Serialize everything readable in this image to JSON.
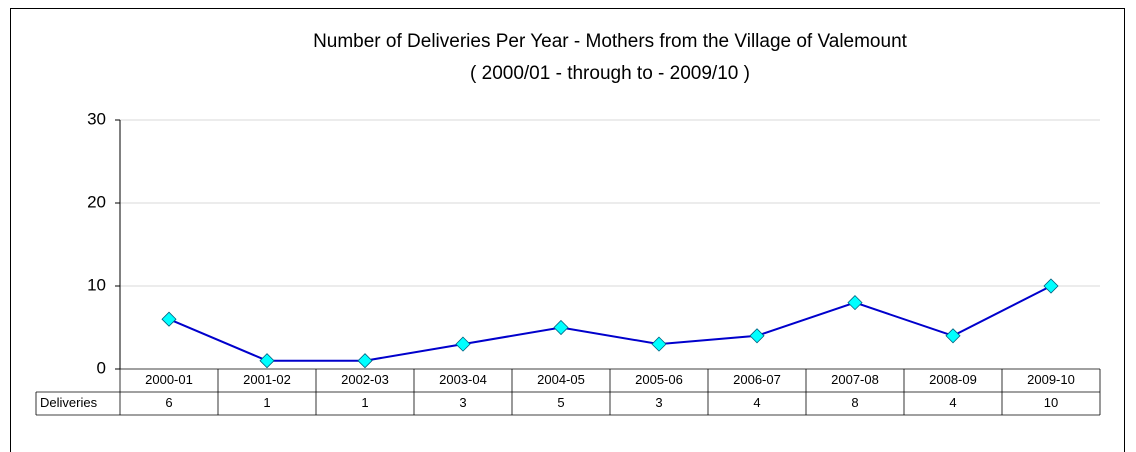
{
  "chart_data": {
    "type": "line",
    "title": "Number of Deliveries Per Year - Mothers from the Village of Valemount",
    "subtitle": "( 2000/01 - through to - 2009/10 )",
    "categories": [
      "2000-01",
      "2001-02",
      "2002-03",
      "2003-04",
      "2004-05",
      "2005-06",
      "2006-07",
      "2007-08",
      "2008-09",
      "2009-10"
    ],
    "series": [
      {
        "name": "Deliveries",
        "color": "#0000cc",
        "marker_color": "#00ffff",
        "values": [
          6,
          1,
          1,
          3,
          5,
          3,
          4,
          8,
          4,
          10
        ]
      }
    ],
    "ylim": [
      0,
      30
    ],
    "yticks": [
      0,
      10,
      20,
      30
    ],
    "grid": true
  }
}
